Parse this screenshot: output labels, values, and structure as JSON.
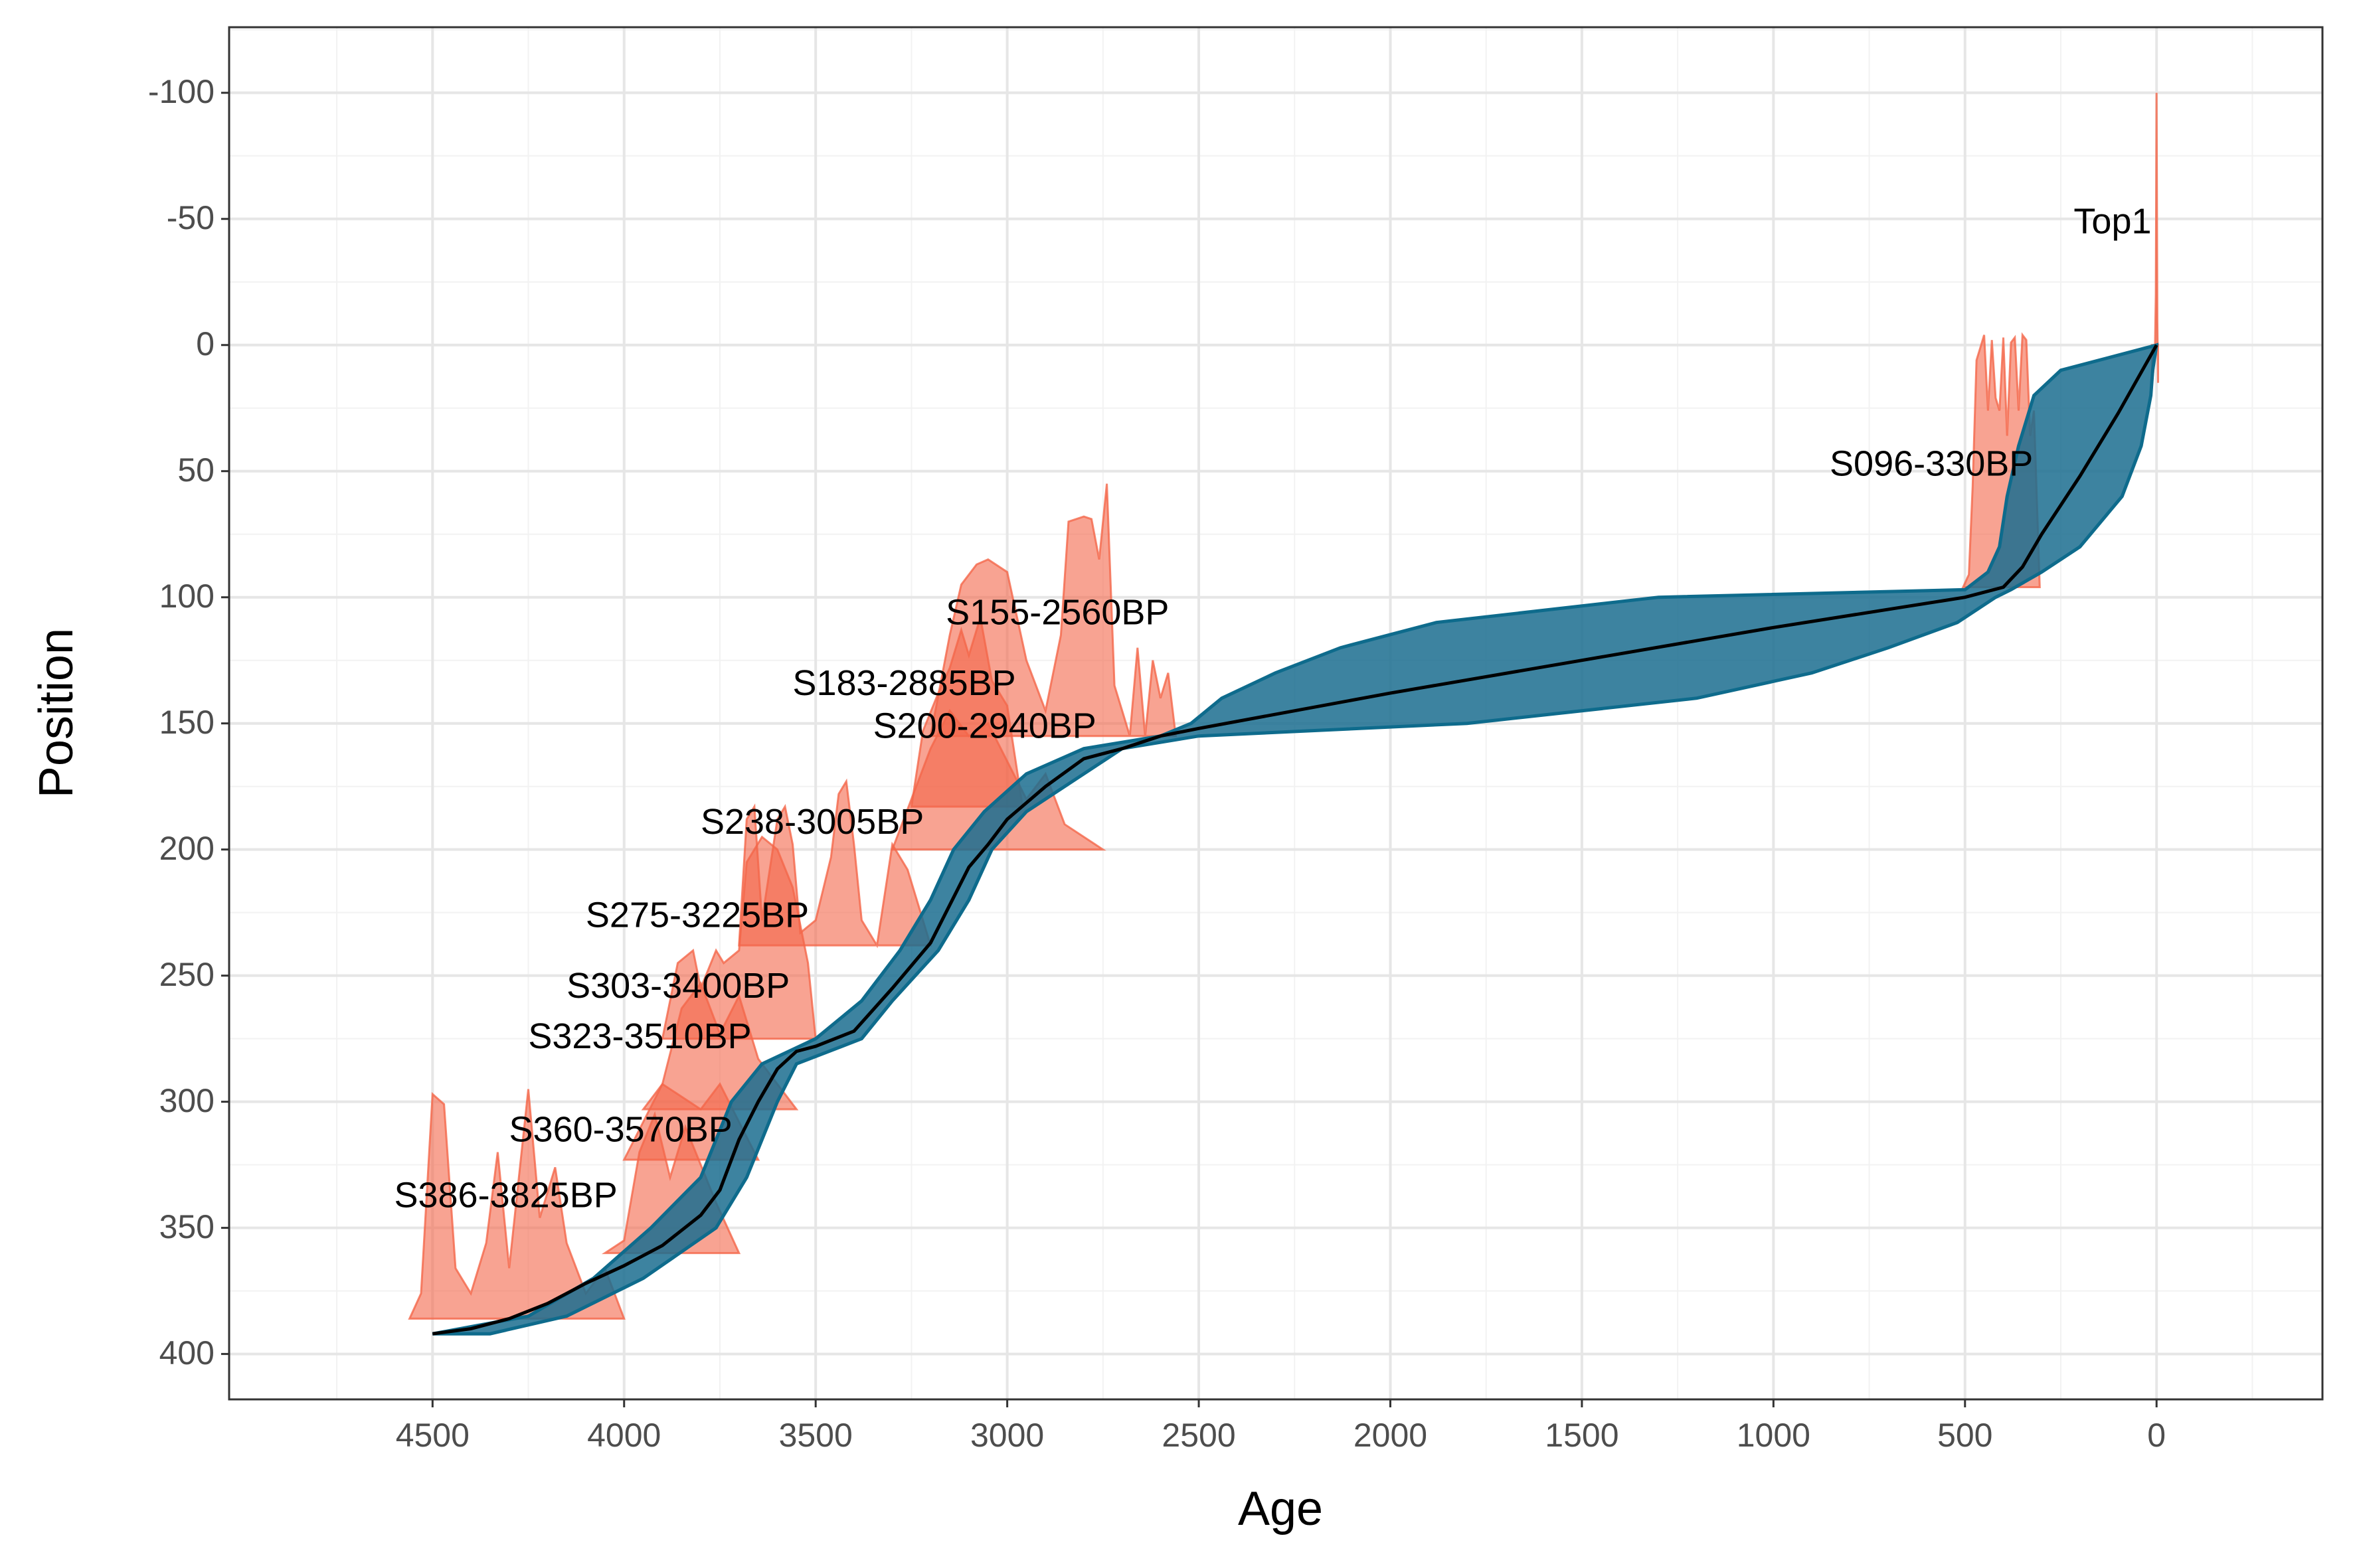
{
  "chart_data": {
    "type": "line",
    "x_label": "Age",
    "y_label": "Position",
    "xlim": [
      5031,
      -433
    ],
    "ylim": [
      418,
      -126
    ],
    "xticks": [
      4500,
      4000,
      3500,
      3000,
      2500,
      2000,
      1500,
      1000,
      500,
      0
    ],
    "yticks": [
      -100,
      -50,
      0,
      50,
      100,
      150,
      200,
      250,
      300,
      350,
      400
    ],
    "grid": true,
    "median": {
      "color": "#000000",
      "x": [
        4500,
        4400,
        4300,
        4200,
        4100,
        4000,
        3900,
        3800,
        3750,
        3700,
        3650,
        3600,
        3550,
        3500,
        3400,
        3300,
        3200,
        3150,
        3100,
        3050,
        3000,
        2900,
        2800,
        2700,
        2600,
        2500,
        2000,
        1500,
        1000,
        500,
        400,
        350,
        300,
        200,
        100,
        0
      ],
      "y": [
        392,
        390,
        386,
        380,
        372,
        365,
        357,
        345,
        335,
        315,
        300,
        287,
        280,
        278,
        272,
        255,
        237,
        222,
        207,
        198,
        188,
        175,
        164,
        160,
        155,
        152,
        138,
        125,
        112,
        100,
        96,
        88,
        75,
        52,
        27,
        0
      ]
    },
    "band": {
      "color": "#1b6d8f",
      "depths": [
        392,
        385,
        370,
        350,
        330,
        300,
        285,
        275,
        260,
        240,
        220,
        200,
        185,
        170,
        160,
        155,
        150,
        140,
        130,
        120,
        110,
        100,
        97,
        90,
        80,
        60,
        40,
        20,
        10,
        0
      ],
      "age_old": [
        4500,
        4250,
        4080,
        3930,
        3800,
        3720,
        3640,
        3500,
        3380,
        3280,
        3200,
        3140,
        3060,
        2950,
        2800,
        2600,
        2520,
        2440,
        2300,
        2130,
        1880,
        1300,
        500,
        440,
        410,
        390,
        360,
        320,
        250,
        0
      ],
      "age_young": [
        4350,
        4150,
        3950,
        3760,
        3680,
        3600,
        3550,
        3380,
        3300,
        3180,
        3100,
        3040,
        2950,
        2800,
        2700,
        2500,
        1800,
        1200,
        900,
        700,
        520,
        420,
        380,
        300,
        200,
        90,
        40,
        15,
        10,
        0
      ]
    },
    "dates_color": "#f4664a",
    "dates": [
      {
        "label": "Top1",
        "depth": 0,
        "ages": [
          12,
          8,
          4,
          2,
          0,
          -2,
          -4
        ],
        "heights": [
          -15,
          -10,
          0,
          20,
          100,
          10,
          -15
        ]
      },
      {
        "label": "S096-330BP",
        "depth": 96,
        "ages": [
          505,
          490,
          480,
          470,
          460,
          450,
          440,
          430,
          420,
          410,
          400,
          390,
          380,
          370,
          360,
          350,
          340,
          330,
          320,
          305
        ],
        "heights": [
          0,
          5,
          40,
          90,
          95,
          100,
          70,
          98,
          75,
          70,
          99,
          60,
          97,
          99,
          70,
          100,
          98,
          60,
          70,
          0
        ]
      },
      {
        "label": "S155-2560BP",
        "depth": 155,
        "ages": [
          3200,
          3150,
          3120,
          3080,
          3050,
          3000,
          2950,
          2900,
          2860,
          2840,
          2800,
          2780,
          2760,
          2740,
          2720,
          2700,
          2680,
          2660,
          2640,
          2620,
          2600,
          2580,
          2560
        ],
        "heights": [
          0,
          40,
          60,
          68,
          70,
          65,
          30,
          10,
          40,
          85,
          87,
          86,
          70,
          100,
          20,
          10,
          0,
          35,
          0,
          30,
          15,
          25,
          0
        ]
      },
      {
        "label": "S183-2885BP",
        "depth": 183,
        "ages": [
          3250,
          3220,
          3180,
          3150,
          3120,
          3100,
          3070,
          3040,
          3000,
          2960
        ],
        "heights": [
          0,
          30,
          45,
          55,
          70,
          60,
          75,
          50,
          40,
          0
        ]
      },
      {
        "label": "S200-2940BP",
        "depth": 200,
        "ages": [
          3300,
          3250,
          3200,
          3150,
          3100,
          3050,
          3000,
          2950,
          2900,
          2850,
          2800,
          2750
        ],
        "heights": [
          0,
          20,
          40,
          55,
          45,
          50,
          35,
          20,
          30,
          10,
          5,
          0
        ]
      },
      {
        "label": "S238-3005BP",
        "depth": 238,
        "ages": [
          3700,
          3680,
          3660,
          3640,
          3620,
          3600,
          3580,
          3560,
          3540,
          3500,
          3460,
          3440,
          3420,
          3400,
          3380,
          3340,
          3300,
          3260,
          3220,
          3200
        ],
        "heights": [
          0,
          50,
          55,
          10,
          30,
          50,
          55,
          40,
          5,
          10,
          35,
          60,
          65,
          40,
          10,
          0,
          40,
          30,
          10,
          0
        ]
      },
      {
        "label": "S275-3225BP",
        "depth": 275,
        "ages": [
          3900,
          3860,
          3820,
          3800,
          3760,
          3740,
          3700,
          3680,
          3640,
          3600,
          3560,
          3520,
          3500
        ],
        "heights": [
          0,
          30,
          35,
          20,
          35,
          30,
          35,
          70,
          80,
          75,
          60,
          30,
          0
        ]
      },
      {
        "label": "S303-3400BP",
        "depth": 303,
        "ages": [
          3950,
          3900,
          3850,
          3800,
          3750,
          3700,
          3650,
          3550
        ],
        "heights": [
          0,
          10,
          40,
          50,
          30,
          45,
          20,
          0
        ]
      },
      {
        "label": "S323-3510BP",
        "depth": 323,
        "ages": [
          4000,
          3950,
          3900,
          3850,
          3800,
          3750,
          3700,
          3650
        ],
        "heights": [
          0,
          15,
          30,
          25,
          20,
          30,
          15,
          0
        ]
      },
      {
        "label": "S360-3570BP",
        "depth": 360,
        "ages": [
          4050,
          4000,
          3960,
          3920,
          3880,
          3840,
          3800,
          3760,
          3700
        ],
        "heights": [
          0,
          5,
          40,
          55,
          30,
          50,
          35,
          20,
          0
        ]
      },
      {
        "label": "S386-3825BP",
        "depth": 386,
        "ages": [
          4560,
          4530,
          4500,
          4470,
          4440,
          4400,
          4360,
          4330,
          4300,
          4250,
          4220,
          4180,
          4150,
          4100,
          4050,
          4000
        ],
        "heights": [
          0,
          10,
          89,
          85,
          20,
          10,
          30,
          66,
          20,
          91,
          40,
          60,
          30,
          10,
          20,
          0
        ]
      }
    ]
  }
}
